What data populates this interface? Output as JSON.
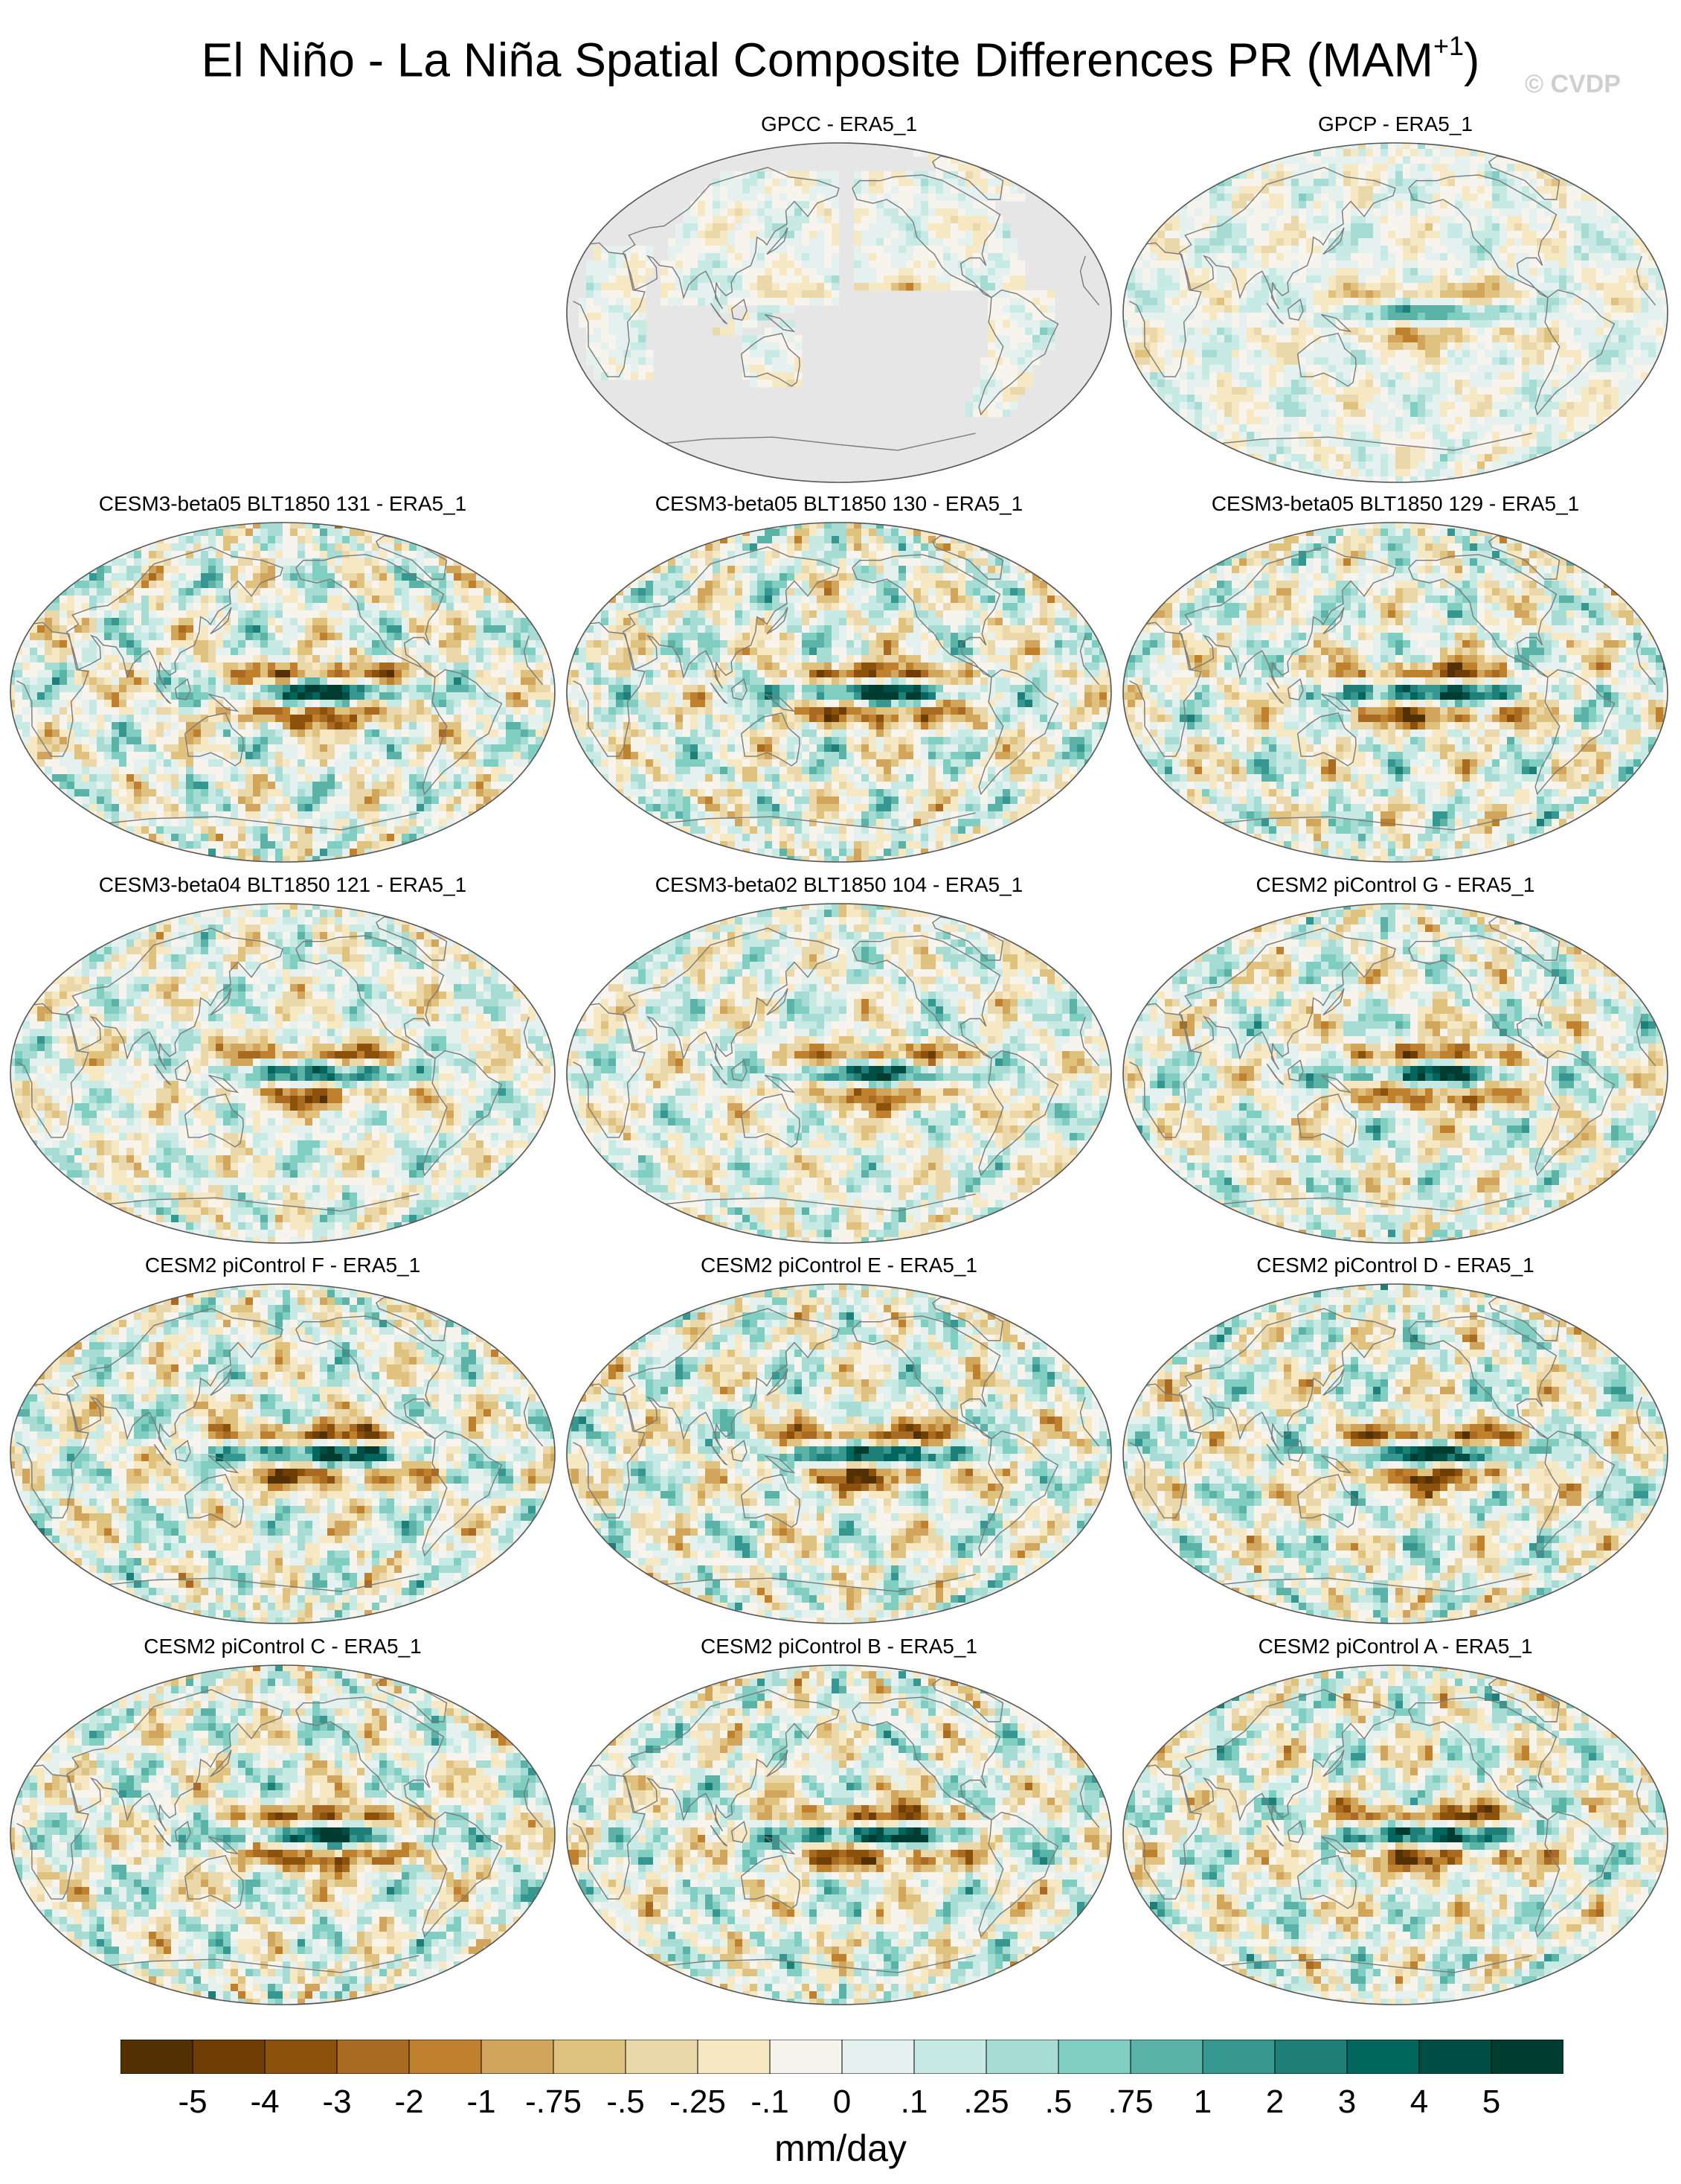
{
  "figure": {
    "title": "El Niño - La Niña Spatial Composite Differences PR (MAM",
    "title_superscript": "+1",
    "title_close": ")",
    "copyright": "© CVDP"
  },
  "panels": [
    {
      "label": "GPCC - ERA5_1",
      "kind": "land-only",
      "strength": 0.45
    },
    {
      "label": "GPCP - ERA5_1",
      "kind": "global",
      "strength": 0.55
    },
    {
      "label": "CESM3-beta05 BLT1850 131 - ERA5_1",
      "kind": "global",
      "strength": 1.0
    },
    {
      "label": "CESM3-beta05 BLT1850 130 - ERA5_1",
      "kind": "global",
      "strength": 1.0
    },
    {
      "label": "CESM3-beta05 BLT1850 129 - ERA5_1",
      "kind": "global",
      "strength": 1.0
    },
    {
      "label": "CESM3-beta04 BLT1850 121 - ERA5_1",
      "kind": "global",
      "strength": 0.85
    },
    {
      "label": "CESM3-beta02 BLT1850 104 - ERA5_1",
      "kind": "global",
      "strength": 0.85
    },
    {
      "label": "CESM2 piControl G - ERA5_1",
      "kind": "global",
      "strength": 0.95
    },
    {
      "label": "CESM2 piControl F - ERA5_1",
      "kind": "global",
      "strength": 1.0
    },
    {
      "label": "CESM2 piControl E - ERA5_1",
      "kind": "global",
      "strength": 1.0
    },
    {
      "label": "CESM2 piControl D - ERA5_1",
      "kind": "global",
      "strength": 1.0
    },
    {
      "label": "CESM2 piControl C - ERA5_1",
      "kind": "global",
      "strength": 1.0
    },
    {
      "label": "CESM2 piControl B - ERA5_1",
      "kind": "global",
      "strength": 1.0
    },
    {
      "label": "CESM2 piControl A - ERA5_1",
      "kind": "global",
      "strength": 1.0
    }
  ],
  "colorbar": {
    "colors": [
      "#543005",
      "#6f3e07",
      "#8c510a",
      "#a96a22",
      "#bf812d",
      "#d2a55c",
      "#dfc27d",
      "#ebd8aa",
      "#f6e8c3",
      "#f7f3ed",
      "#e4f1ef",
      "#c7eae5",
      "#a6dcd3",
      "#80cdc1",
      "#5bb3a8",
      "#35978f",
      "#1d7f77",
      "#01665e",
      "#014e45",
      "#003c30"
    ],
    "levels": [
      "-5",
      "-4",
      "-3",
      "-2",
      "-1",
      "-.75",
      "-.5",
      "-.25",
      "-.1",
      "0",
      ".1",
      ".25",
      ".5",
      ".75",
      "1",
      "2",
      "3",
      "4",
      "5"
    ],
    "units": "mm/day"
  },
  "legend": {
    "missing_color": "#e6e6e6",
    "coastline_color": "#7a7a7a"
  }
}
